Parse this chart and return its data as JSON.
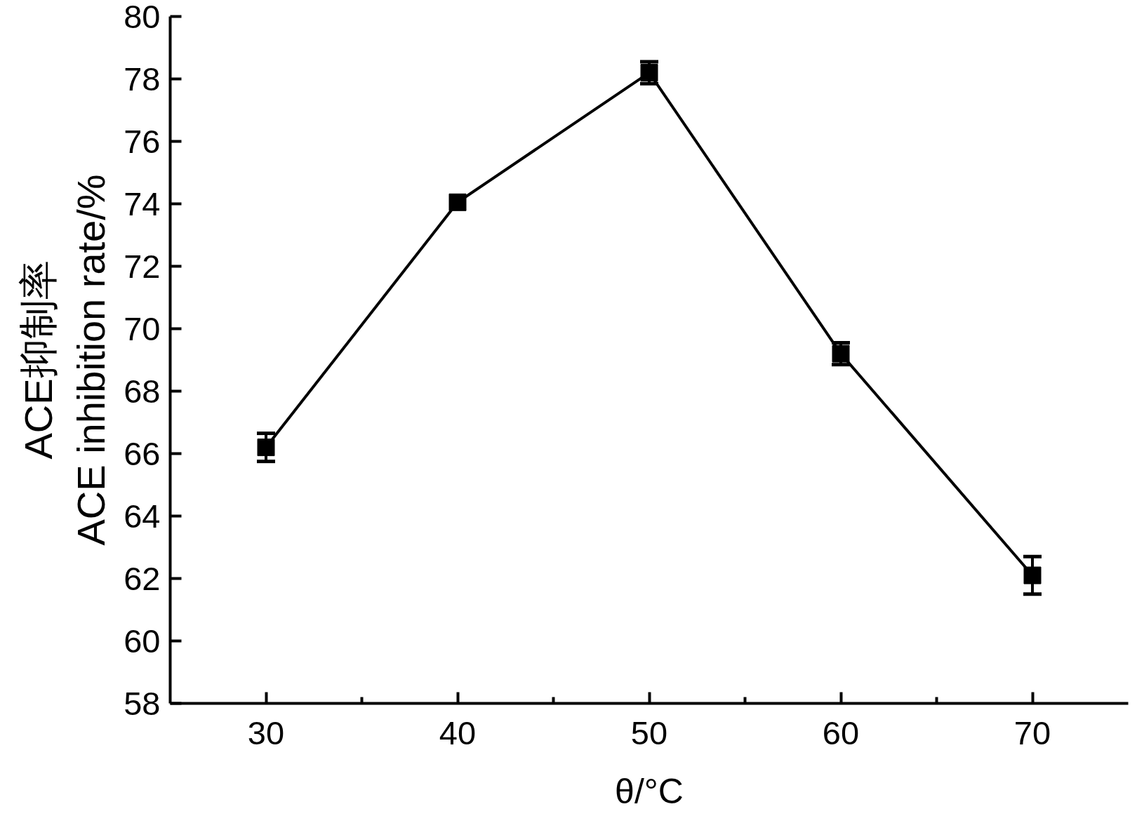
{
  "chart_data": {
    "type": "line",
    "xlabel": "θ/°C",
    "ylabel": "ACE抑制率\nACE inhibition rate/%",
    "x": [
      30,
      40,
      50,
      60,
      70
    ],
    "values": [
      66.2,
      74.05,
      78.2,
      69.2,
      62.1
    ],
    "errors": [
      0.45,
      null,
      0.35,
      0.35,
      0.6
    ],
    "color": "#000000",
    "marker": "square",
    "line_style": "solid",
    "xlim": [
      25,
      75
    ],
    "xticks": [
      30,
      {
        "value": 35,
        "label": null
      },
      40,
      {
        "value": 45,
        "label": null
      },
      50,
      {
        "value": 55,
        "label": null
      },
      60,
      {
        "value": 65,
        "label": null
      },
      70
    ],
    "ylim": [
      58,
      80
    ],
    "yticks": [
      58,
      60,
      62,
      64,
      66,
      68,
      70,
      72,
      74,
      76,
      78,
      80
    ]
  }
}
